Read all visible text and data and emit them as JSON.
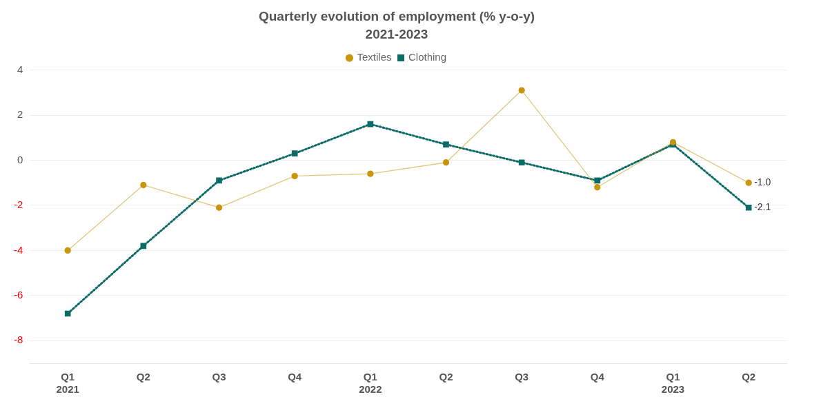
{
  "chart_data": {
    "type": "line",
    "title": "Quarterly evolution of employment (% y-o-y)",
    "subtitle": "2021-2023",
    "categories": [
      "Q1 2021",
      "Q2",
      "Q3",
      "Q4",
      "Q1 2022",
      "Q2",
      "Q3",
      "Q4",
      "Q1 2023",
      "Q2"
    ],
    "series": [
      {
        "name": "Textiles",
        "color": "#c8960c",
        "marker": "circle",
        "line_style": "solid",
        "values": [
          -4.0,
          -1.1,
          -2.1,
          -0.7,
          -0.6,
          -0.1,
          3.1,
          -1.2,
          0.8,
          -1.0
        ],
        "value_labels": [
          null,
          null,
          null,
          null,
          null,
          null,
          null,
          null,
          null,
          "-1.0"
        ]
      },
      {
        "name": "Clothing",
        "color": "#0b6b67",
        "marker": "square",
        "line_style": "dotted",
        "values": [
          -6.8,
          -3.8,
          -0.9,
          0.3,
          1.6,
          0.7,
          -0.1,
          -0.9,
          0.7,
          -2.1
        ],
        "value_labels": [
          null,
          null,
          null,
          null,
          null,
          null,
          null,
          null,
          null,
          "-2.1"
        ]
      }
    ],
    "ylim": [
      -9,
      4
    ],
    "yticks": [
      -8,
      -6,
      -4,
      -2,
      0,
      2,
      4
    ],
    "grid": "y",
    "legend": "top"
  }
}
